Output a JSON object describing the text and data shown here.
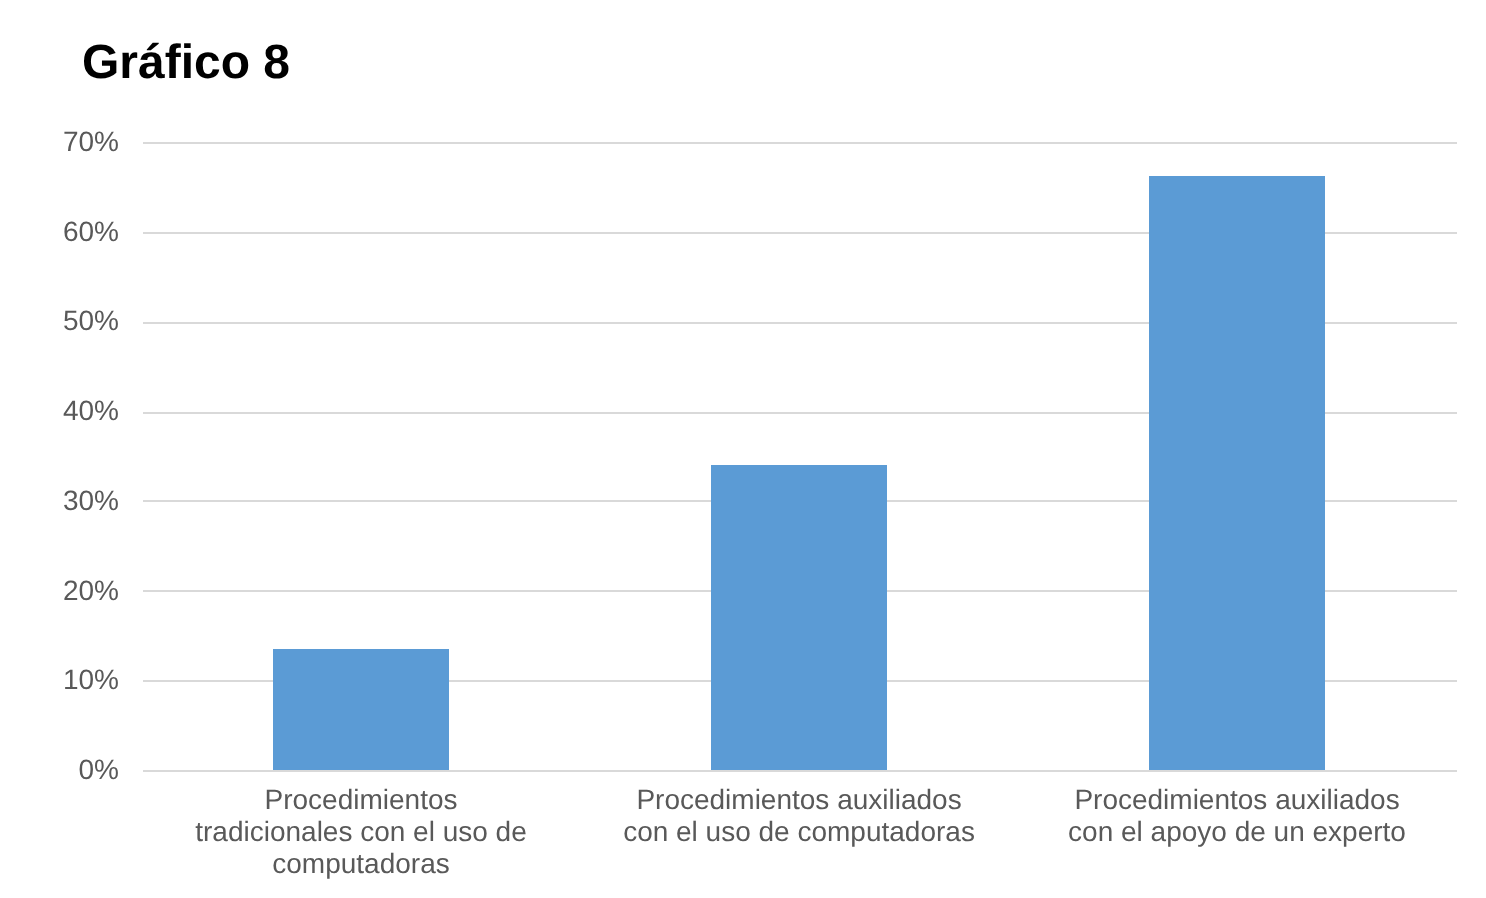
{
  "chart_data": {
    "type": "bar",
    "title": "Gráfico 8",
    "categories": [
      "Procedimientos tradicionales con el uso de computadoras",
      "Procedimientos auxiliados con el uso de computadoras",
      "Procedimientos auxiliados con el apoyo de un experto"
    ],
    "values": [
      13.5,
      34,
      66.2
    ],
    "color": "#5b9bd5",
    "ylim": [
      0,
      70
    ],
    "yticks": [
      {
        "value": 0,
        "label": "0%"
      },
      {
        "value": 10,
        "label": "10%"
      },
      {
        "value": 20,
        "label": "20%"
      },
      {
        "value": 30,
        "label": "30%"
      },
      {
        "value": 40,
        "label": "40%"
      },
      {
        "value": 50,
        "label": "50%"
      },
      {
        "value": 60,
        "label": "60%"
      },
      {
        "value": 70,
        "label": "70%"
      }
    ],
    "grid": "y"
  }
}
